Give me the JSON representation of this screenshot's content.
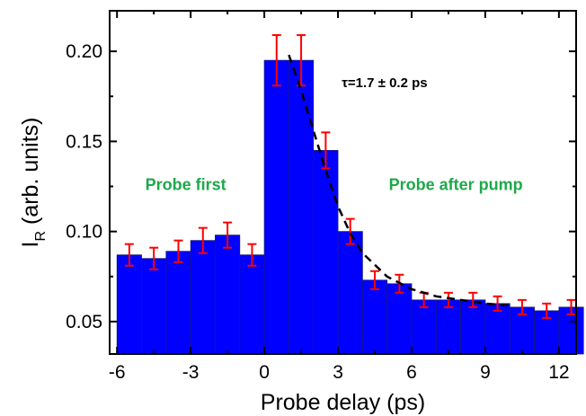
{
  "chart_data": {
    "type": "bar",
    "title": "",
    "xlabel": "Probe delay (ps)",
    "ylabel": {
      "main": "I",
      "subscript": "R",
      "suffix": " (arb. units)"
    },
    "xlim": [
      -6.3,
      12.7
    ],
    "ylim": [
      0.032,
      0.2225
    ],
    "xticks": [
      -6,
      -3,
      0,
      3,
      6,
      9,
      12
    ],
    "yticks": [
      0.05,
      0.1,
      0.15,
      0.2
    ],
    "ytick_labels": [
      "0.05",
      "0.10",
      "0.15",
      "0.20"
    ],
    "grid": false,
    "bar_color": "#0000ff",
    "error_color": "#ff0000",
    "fit_color": "#000000",
    "bar_width": 1,
    "bars": [
      {
        "x": -5.5,
        "y": 0.087,
        "err": 0.006
      },
      {
        "x": -4.5,
        "y": 0.085,
        "err": 0.006
      },
      {
        "x": -3.5,
        "y": 0.089,
        "err": 0.006
      },
      {
        "x": -2.5,
        "y": 0.095,
        "err": 0.007
      },
      {
        "x": -1.5,
        "y": 0.098,
        "err": 0.007
      },
      {
        "x": -0.5,
        "y": 0.087,
        "err": 0.006
      },
      {
        "x": 0.5,
        "y": 0.195,
        "err": 0.014
      },
      {
        "x": 1.5,
        "y": 0.195,
        "err": 0.014
      },
      {
        "x": 2.5,
        "y": 0.145,
        "err": 0.01
      },
      {
        "x": 3.5,
        "y": 0.1,
        "err": 0.007
      },
      {
        "x": 4.5,
        "y": 0.073,
        "err": 0.005
      },
      {
        "x": 5.5,
        "y": 0.071,
        "err": 0.005
      },
      {
        "x": 6.5,
        "y": 0.062,
        "err": 0.004
      },
      {
        "x": 7.5,
        "y": 0.062,
        "err": 0.004
      },
      {
        "x": 8.5,
        "y": 0.062,
        "err": 0.004
      },
      {
        "x": 9.5,
        "y": 0.06,
        "err": 0.004
      },
      {
        "x": 10.5,
        "y": 0.058,
        "err": 0.004
      },
      {
        "x": 11.5,
        "y": 0.056,
        "err": 0.004
      },
      {
        "x": 12.5,
        "y": 0.058,
        "err": 0.004
      }
    ],
    "fit": {
      "style": "dashed",
      "x": [
        1.0,
        1.5,
        2.0,
        2.5,
        3.0,
        3.5,
        4.0,
        5.0,
        6.0,
        7.0,
        8.0,
        9.0,
        10.0
      ],
      "y": [
        0.198,
        0.178,
        0.156,
        0.134,
        0.114,
        0.099,
        0.088,
        0.075,
        0.068,
        0.064,
        0.062,
        0.06,
        0.059
      ]
    },
    "annotations": [
      {
        "text": "τ=1.7 ± 0.2 ps",
        "x": 4.9,
        "y": 0.18,
        "color": "#000000",
        "size": 15
      },
      {
        "text": "Probe first",
        "x": -3.2,
        "y": 0.123,
        "color": "#1ea84a",
        "size": 18
      },
      {
        "text": "Probe after pump",
        "x": 7.8,
        "y": 0.123,
        "color": "#1ea84a",
        "size": 18
      }
    ]
  }
}
